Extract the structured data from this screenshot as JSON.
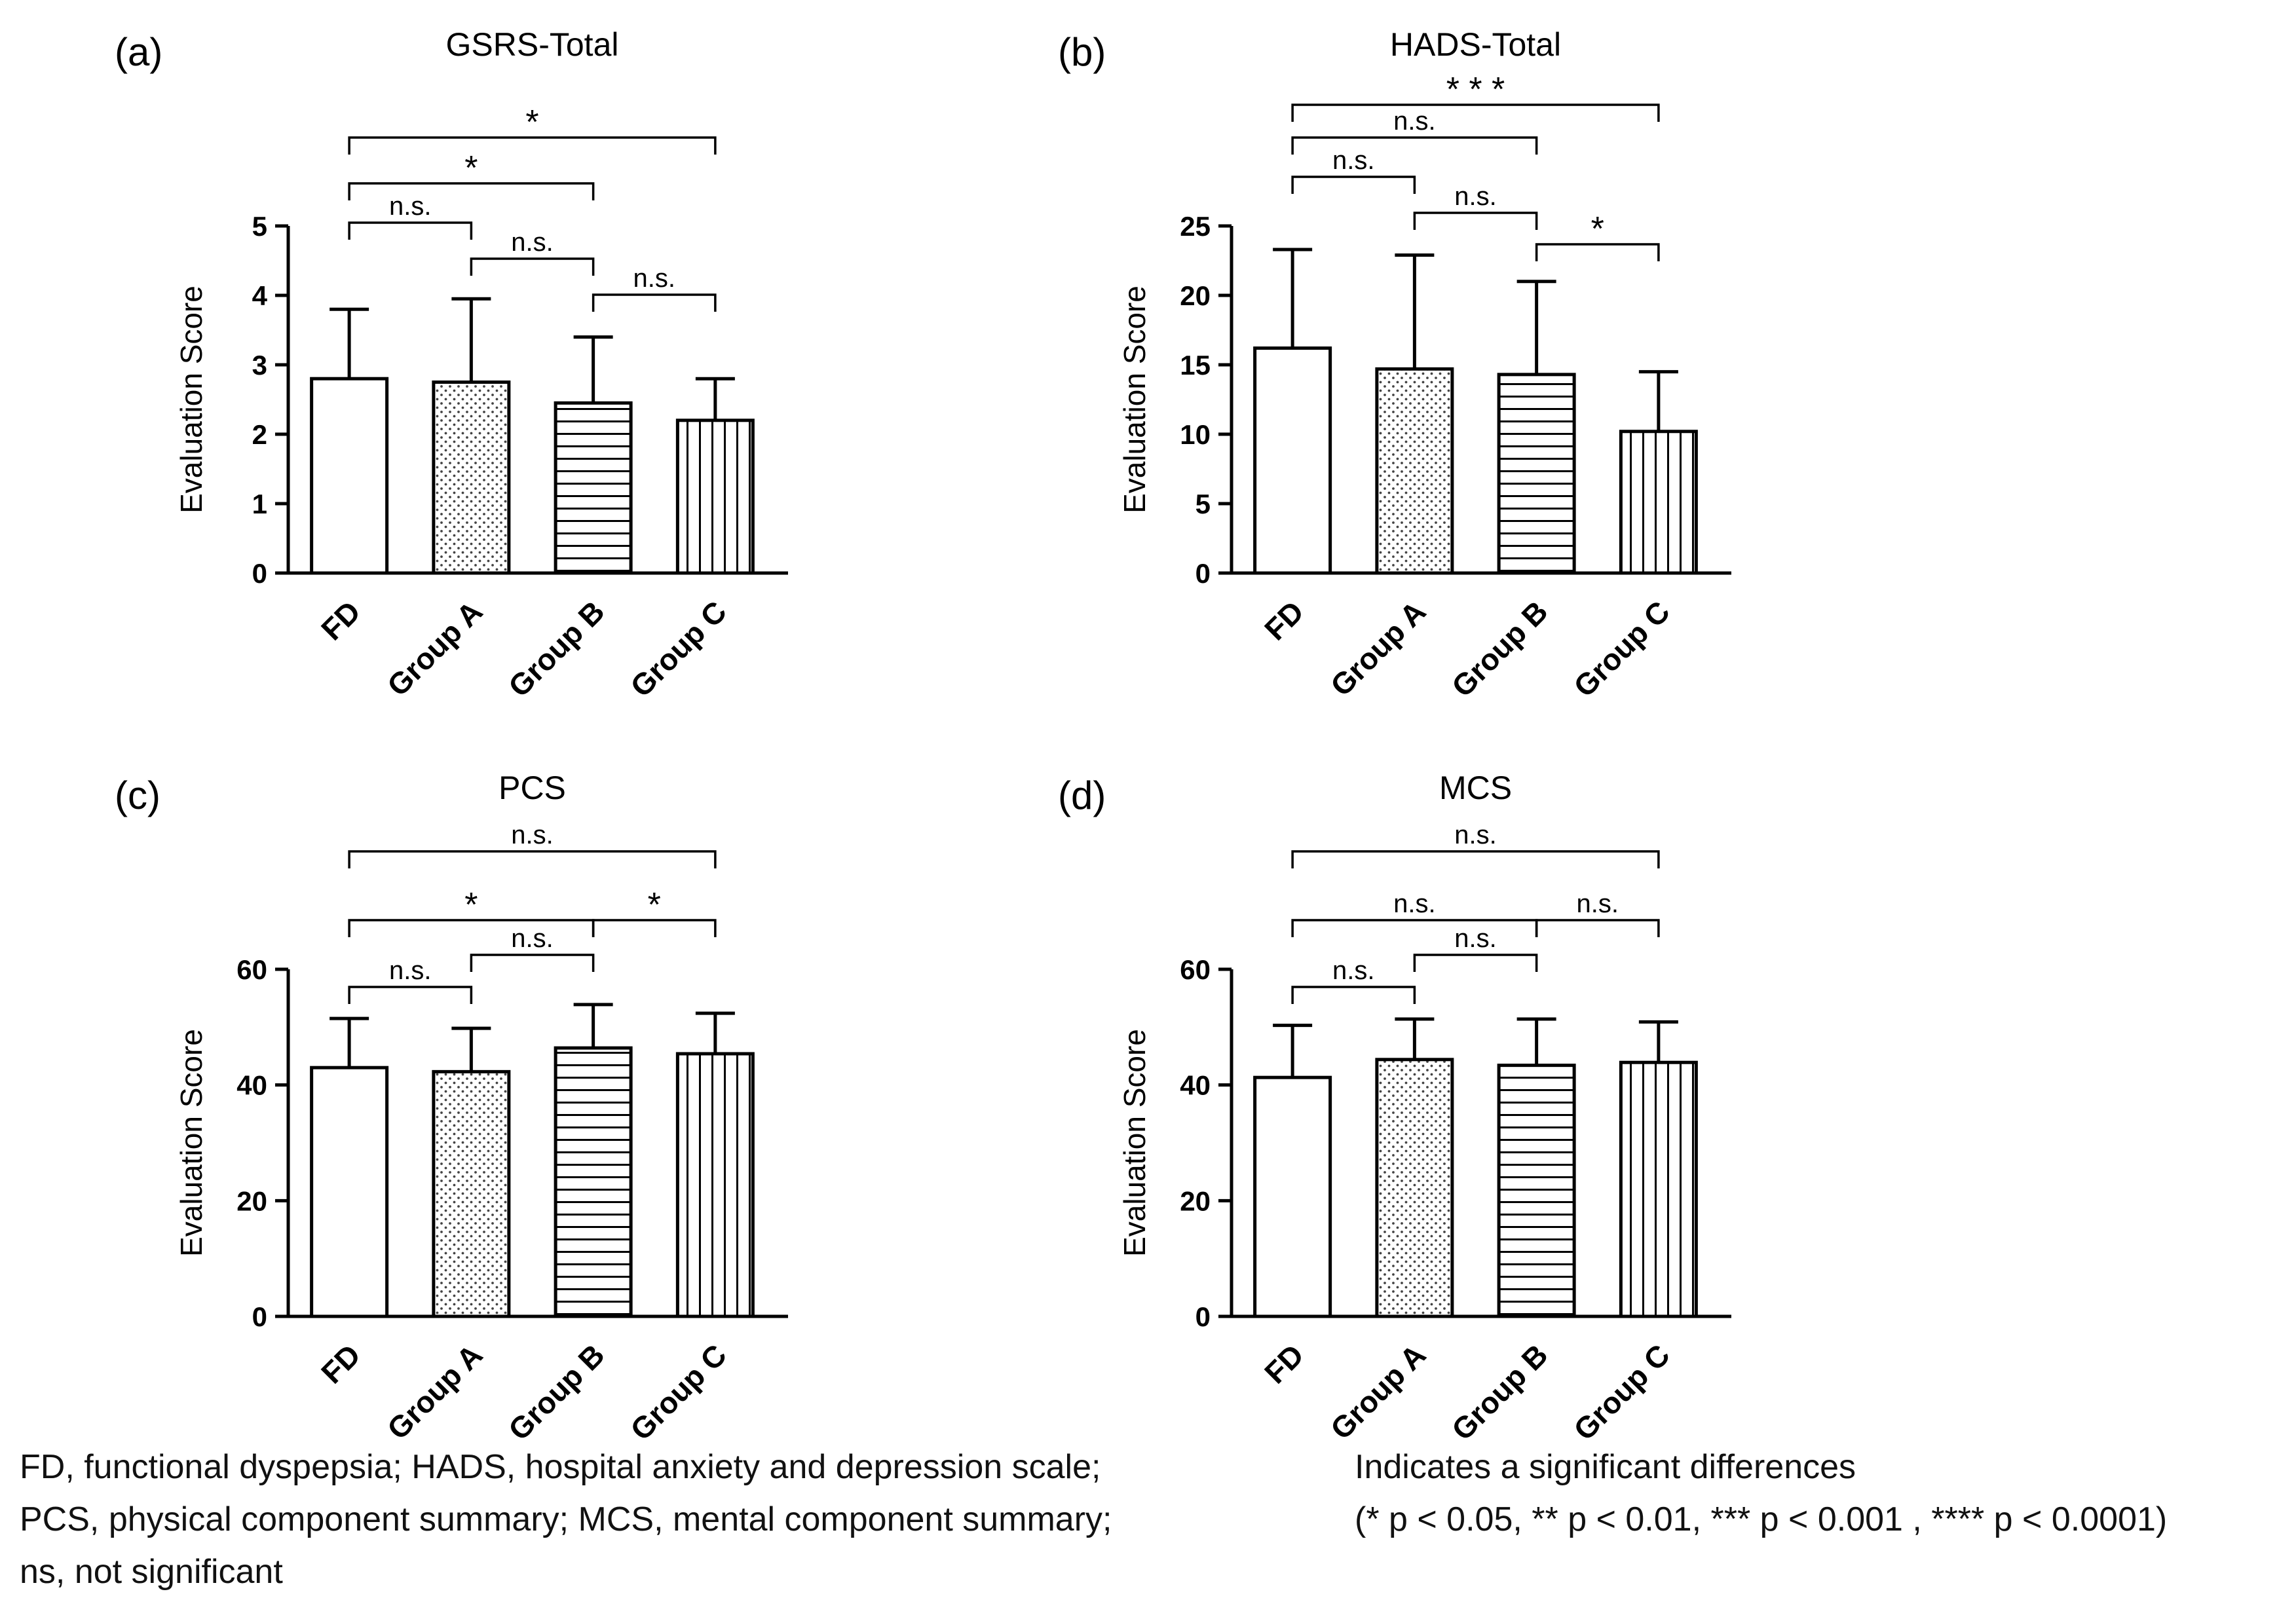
{
  "page": {
    "background": "#ffffff",
    "foreground": "#000000"
  },
  "footer": {
    "left_lines": [
      "FD, functional dyspepsia; HADS, hospital anxiety and depression scale;",
      "PCS, physical component summary; MCS, mental component summary;",
      "ns, not significant"
    ],
    "right_lines": [
      "Indicates a significant differences",
      "(* p < 0.05, ** p < 0.01, *** p < 0.001 , **** p < 0.0001)"
    ]
  },
  "chart_data": [
    {
      "type": "bar",
      "panel_label": "(a)",
      "title": "GSRS-Total",
      "ylabel": "Evaluation Score",
      "categories": [
        "FD",
        "Group A",
        "Group B",
        "Group C"
      ],
      "values": [
        2.8,
        2.75,
        2.45,
        2.2
      ],
      "errors_sd": [
        1.0,
        1.2,
        0.95,
        0.6
      ],
      "ylim": [
        0,
        5
      ],
      "yticks": [
        0,
        1,
        2,
        3,
        4,
        5
      ],
      "bar_fill_patterns": [
        "solid",
        "dots",
        "horizontal-lines",
        "vertical-lines"
      ],
      "comparisons": [
        {
          "group1": "FD",
          "group2": "Group C",
          "label": "*",
          "row": 0
        },
        {
          "group1": "FD",
          "group2": "Group B",
          "label": "*",
          "row": 1
        },
        {
          "group1": "FD",
          "group2": "Group A",
          "label": "n.s.",
          "row": 2
        },
        {
          "group1": "Group A",
          "group2": "Group B",
          "label": "n.s.",
          "row": 3
        },
        {
          "group1": "Group B",
          "group2": "Group C",
          "label": "n.s.",
          "row": 4
        }
      ]
    },
    {
      "type": "bar",
      "panel_label": "(b)",
      "title": "HADS-Total",
      "ylabel": "Evaluation Score",
      "categories": [
        "FD",
        "Group A",
        "Group B",
        "Group C"
      ],
      "values": [
        16.2,
        14.7,
        14.3,
        10.2
      ],
      "errors_sd": [
        7.1,
        8.2,
        6.7,
        4.3
      ],
      "ylim": [
        0,
        25
      ],
      "yticks": [
        0,
        5,
        10,
        15,
        20,
        25
      ],
      "bar_fill_patterns": [
        "solid",
        "dots",
        "horizontal-lines",
        "vertical-lines"
      ],
      "comparisons": [
        {
          "group1": "FD",
          "group2": "Group C",
          "label": "* * *",
          "row": 0
        },
        {
          "group1": "FD",
          "group2": "Group B",
          "label": "n.s.",
          "row": 1
        },
        {
          "group1": "FD",
          "group2": "Group A",
          "label": "n.s.",
          "row": 2
        },
        {
          "group1": "Group A",
          "group2": "Group B",
          "label": "n.s.",
          "row": 3
        },
        {
          "group1": "Group B",
          "group2": "Group C",
          "label": "*",
          "row": 4
        }
      ]
    },
    {
      "type": "bar",
      "panel_label": "(c)",
      "title": "PCS",
      "ylabel": "Evaluation Score",
      "categories": [
        "FD",
        "Group A",
        "Group B",
        "Group C"
      ],
      "values": [
        43,
        42.3,
        46.4,
        45.4
      ],
      "errors_sd": [
        8.5,
        7.5,
        7.5,
        7
      ],
      "ylim": [
        0,
        60
      ],
      "yticks": [
        0,
        20,
        40,
        60
      ],
      "bar_fill_patterns": [
        "solid",
        "dots",
        "horizontal-lines",
        "vertical-lines"
      ],
      "comparisons": [
        {
          "group1": "FD",
          "group2": "Group C",
          "label": "n.s.",
          "row": 0
        },
        {
          "group1": "FD",
          "group2": "Group B",
          "label": "*",
          "row": 1
        },
        {
          "group1": "Group B",
          "group2": "Group C",
          "label": "*",
          "row": 1
        },
        {
          "group1": "Group A",
          "group2": "Group B",
          "label": "n.s.",
          "row": 2
        },
        {
          "group1": "FD",
          "group2": "Group A",
          "label": "n.s.",
          "row": 3
        }
      ]
    },
    {
      "type": "bar",
      "panel_label": "(d)",
      "title": "MCS",
      "ylabel": "Evaluation Score",
      "categories": [
        "FD",
        "Group A",
        "Group B",
        "Group C"
      ],
      "values": [
        41.3,
        44.4,
        43.4,
        43.9
      ],
      "errors_sd": [
        9,
        7,
        8,
        7
      ],
      "ylim": [
        0,
        60
      ],
      "yticks": [
        0,
        20,
        40,
        60
      ],
      "bar_fill_patterns": [
        "solid",
        "dots",
        "horizontal-lines",
        "vertical-lines"
      ],
      "comparisons": [
        {
          "group1": "FD",
          "group2": "Group C",
          "label": "n.s.",
          "row": 0
        },
        {
          "group1": "FD",
          "group2": "Group B",
          "label": "n.s.",
          "row": 1
        },
        {
          "group1": "Group B",
          "group2": "Group C",
          "label": "n.s.",
          "row": 1
        },
        {
          "group1": "Group A",
          "group2": "Group B",
          "label": "n.s.",
          "row": 2
        },
        {
          "group1": "FD",
          "group2": "Group A",
          "label": "n.s.",
          "row": 3
        }
      ]
    }
  ]
}
